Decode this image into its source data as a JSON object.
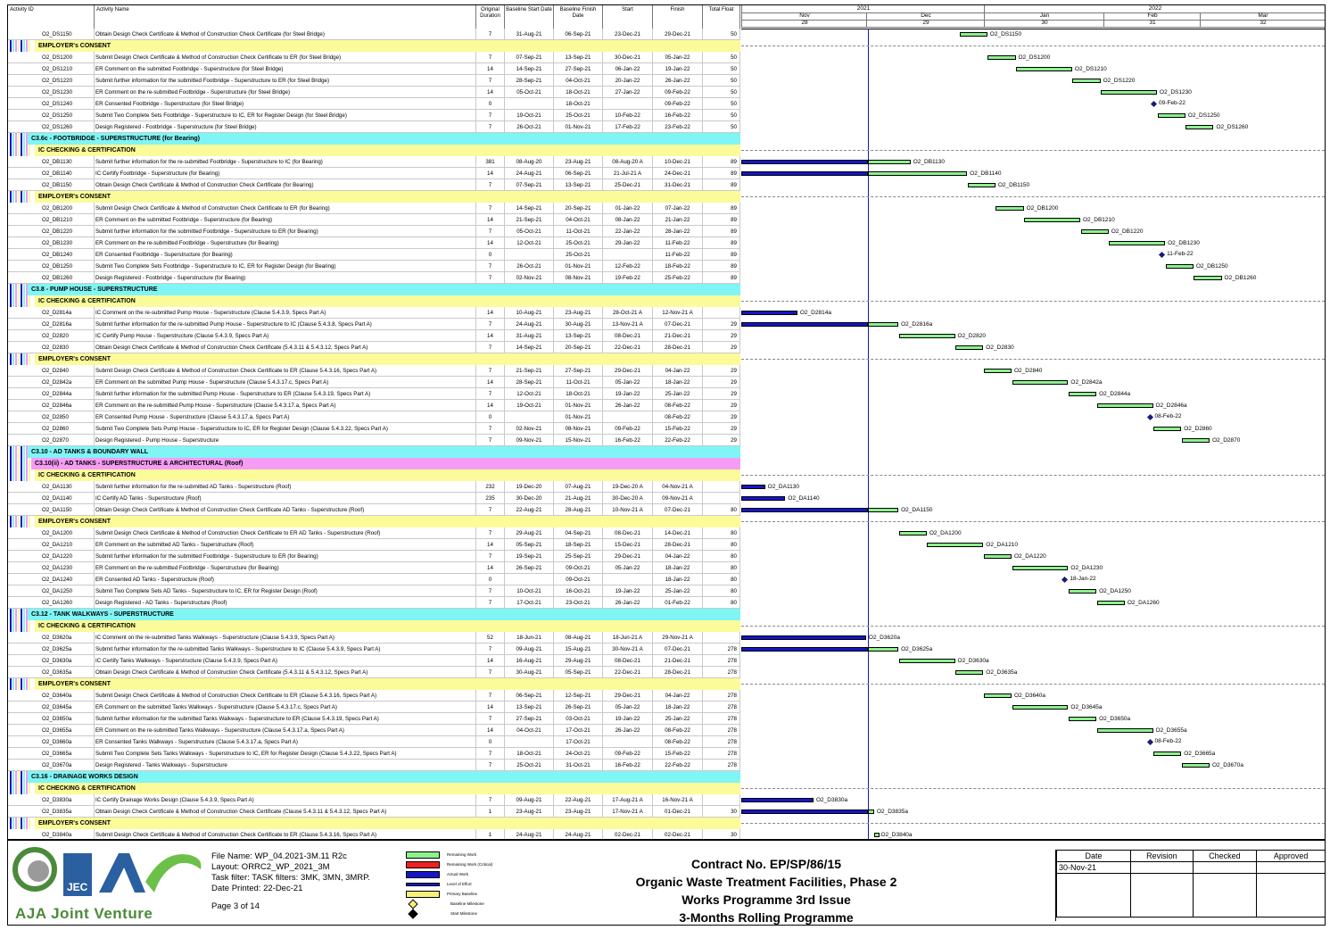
{
  "columns": [
    "Activity ID",
    "Activity Name",
    "Original Duration",
    "Baseline Start Date",
    "Baseline Finish Date",
    "Start",
    "Finish",
    "Total Float"
  ],
  "timeline": {
    "years": [
      "2021",
      "2022"
    ],
    "months": [
      "Nov",
      "Dec",
      "Jan",
      "Feb",
      "Mar"
    ],
    "weeks": [
      "28",
      "29",
      "30",
      "31",
      "32"
    ]
  },
  "rows": [
    {
      "type": "act",
      "id": "O2_DS1150",
      "name": "Obtain Design Check Certificate & Method of Construction Check Certificate (for Steel Bridge)",
      "od": "7",
      "bs": "31-Aug-21",
      "bf": "06-Sep-21",
      "st": "23-Dec-21",
      "fi": "29-Dec-21",
      "tf": "50"
    },
    {
      "type": "sub",
      "name": "EMPLOYER's CONSENT"
    },
    {
      "type": "act",
      "id": "O2_DS1200",
      "name": "Submit Design Check Certificate & Method of Construction Check Certificate to ER (for Steel Bridge)",
      "od": "7",
      "bs": "07-Sep-21",
      "bf": "13-Sep-21",
      "st": "30-Dec-21",
      "fi": "05-Jan-22",
      "tf": "50"
    },
    {
      "type": "act",
      "id": "O2_DS1210",
      "name": "ER Comment on the submitted Footbridge - Superstructure (for Steel Bridge)",
      "od": "14",
      "bs": "14-Sep-21",
      "bf": "27-Sep-21",
      "st": "06-Jan-22",
      "fi": "19-Jan-22",
      "tf": "50"
    },
    {
      "type": "act",
      "id": "O2_DS1220",
      "name": "Submit further information for the submitted Footbridge - Superstructure to ER (for Steel Bridge)",
      "od": "7",
      "bs": "28-Sep-21",
      "bf": "04-Oct-21",
      "st": "20-Jan-22",
      "fi": "26-Jan-22",
      "tf": "50"
    },
    {
      "type": "act",
      "id": "O2_DS1230",
      "name": "ER Comment on the re-submitted Footbridge - Superstructure (for Steel Bridge)",
      "od": "14",
      "bs": "05-Oct-21",
      "bf": "18-Oct-21",
      "st": "27-Jan-22",
      "fi": "09-Feb-22",
      "tf": "50"
    },
    {
      "type": "act",
      "id": "O2_DS1240",
      "name": "ER Consented Footbridge - Superstructure (for Steel Bridge)",
      "od": "0",
      "bs": "",
      "bf": "18-Oct-21",
      "st": "",
      "fi": "09-Feb-22",
      "tf": "50"
    },
    {
      "type": "act",
      "id": "O2_DS1250",
      "name": "Submit Two Complete Sets Footbridge - Superstructure to IC, ER for Register Design (for Steel Bridge)",
      "od": "7",
      "bs": "19-Oct-21",
      "bf": "25-Oct-21",
      "st": "10-Feb-22",
      "fi": "16-Feb-22",
      "tf": "50"
    },
    {
      "type": "act",
      "id": "O2_DS1260",
      "name": "Design Registered - Footbridge - Superstructure (for Steel Bridge)",
      "od": "7",
      "bs": "26-Oct-21",
      "bf": "01-Nov-21",
      "st": "17-Feb-22",
      "fi": "23-Feb-22",
      "tf": "50"
    },
    {
      "type": "sec",
      "name": "C3.6c - FOOTBRIDGE - SUPERSTRUCTURE (for Bearing)"
    },
    {
      "type": "sub",
      "name": "IC CHECKING & CERTIFICATION"
    },
    {
      "type": "act",
      "id": "O2_DB1130",
      "name": "Submit further information for the re-submitted Footbridge - Superstructure to IC (for Bearing)",
      "od": "381",
      "bs": "08-Aug-20",
      "bf": "23-Aug-21",
      "st": "08-Aug-20 A",
      "fi": "10-Dec-21",
      "tf": "89"
    },
    {
      "type": "act",
      "id": "O2_DB1140",
      "name": "IC Certify Footbridge - Superstructure (for Bearing)",
      "od": "14",
      "bs": "24-Aug-21",
      "bf": "06-Sep-21",
      "st": "21-Jul-21 A",
      "fi": "24-Dec-21",
      "tf": "89"
    },
    {
      "type": "act",
      "id": "O2_DB1150",
      "name": "Obtain Design Check Certificate & Method of Construction Check Certificate (for Bearing)",
      "od": "7",
      "bs": "07-Sep-21",
      "bf": "13-Sep-21",
      "st": "25-Dec-21",
      "fi": "31-Dec-21",
      "tf": "89"
    },
    {
      "type": "sub",
      "name": "EMPLOYER's CONSENT"
    },
    {
      "type": "act",
      "id": "O2_DB1200",
      "name": "Submit Design Check Certificate & Method of Construction Check Certificate to ER (for Bearing)",
      "od": "7",
      "bs": "14-Sep-21",
      "bf": "20-Sep-21",
      "st": "01-Jan-22",
      "fi": "07-Jan-22",
      "tf": "89"
    },
    {
      "type": "act",
      "id": "O2_DB1210",
      "name": "ER Comment on the submitted Footbridge - Superstructure (for Bearing)",
      "od": "14",
      "bs": "21-Sep-21",
      "bf": "04-Oct-21",
      "st": "08-Jan-22",
      "fi": "21-Jan-22",
      "tf": "89"
    },
    {
      "type": "act",
      "id": "O2_DB1220",
      "name": "Submit further information for the submitted Footbridge - Superstructure to ER (for Bearing)",
      "od": "7",
      "bs": "05-Oct-21",
      "bf": "11-Oct-21",
      "st": "22-Jan-22",
      "fi": "28-Jan-22",
      "tf": "89"
    },
    {
      "type": "act",
      "id": "O2_DB1230",
      "name": "ER Comment on the re-submitted Footbridge - Superstructure (for Bearing)",
      "od": "14",
      "bs": "12-Oct-21",
      "bf": "25-Oct-21",
      "st": "29-Jan-22",
      "fi": "11-Feb-22",
      "tf": "89"
    },
    {
      "type": "act",
      "id": "O2_DB1240",
      "name": "ER Consented Footbridge - Superstructure (for Bearing)",
      "od": "0",
      "bs": "",
      "bf": "25-Oct-21",
      "st": "",
      "fi": "11-Feb-22",
      "tf": "89"
    },
    {
      "type": "act",
      "id": "O2_DB1250",
      "name": "Submit Two Complete Sets Footbridge - Superstructure to IC, ER for Register Design (for Bearing)",
      "od": "7",
      "bs": "26-Oct-21",
      "bf": "01-Nov-21",
      "st": "12-Feb-22",
      "fi": "18-Feb-22",
      "tf": "89"
    },
    {
      "type": "act",
      "id": "O2_DB1260",
      "name": "Design Registered - Footbridge - Superstructure (for Bearing)",
      "od": "7",
      "bs": "02-Nov-21",
      "bf": "08-Nov-21",
      "st": "19-Feb-22",
      "fi": "25-Feb-22",
      "tf": "89"
    },
    {
      "type": "sec",
      "name": "C3.8 - PUMP HOUSE - SUPERSTRUCTURE"
    },
    {
      "type": "sub",
      "name": "IC CHECKING & CERTIFICATION"
    },
    {
      "type": "act",
      "id": "O2_D2814a",
      "name": "IC Comment on the re-submitted Pump House - Superstructure (Clause 5.4.3.9, Specs Part A)",
      "od": "14",
      "bs": "10-Aug-21",
      "bf": "23-Aug-21",
      "st": "28-Oct-21 A",
      "fi": "12-Nov-21 A",
      "tf": ""
    },
    {
      "type": "act",
      "id": "O2_D2816a",
      "name": "Submit further information for the re-submitted Pump House - Superstructure to IC (Clause 5.4.3.8, Specs Part A)",
      "od": "7",
      "bs": "24-Aug-21",
      "bf": "30-Aug-21",
      "st": "13-Nov-21 A",
      "fi": "07-Dec-21",
      "tf": "29"
    },
    {
      "type": "act",
      "id": "O2_D2820",
      "name": "IC Certify Pump House - Superstructure (Clause 5.4.3.9, Specs Part A)",
      "od": "14",
      "bs": "31-Aug-21",
      "bf": "13-Sep-21",
      "st": "08-Dec-21",
      "fi": "21-Dec-21",
      "tf": "29"
    },
    {
      "type": "act",
      "id": "O2_D2830",
      "name": "Obtain Design Check Certificate & Method of Construction Check Certificate (5.4.3.11 & 5.4.3.12, Specs Part A)",
      "od": "7",
      "bs": "14-Sep-21",
      "bf": "20-Sep-21",
      "st": "22-Dec-21",
      "fi": "28-Dec-21",
      "tf": "29"
    },
    {
      "type": "sub",
      "name": "EMPLOYER's CONSENT"
    },
    {
      "type": "act",
      "id": "O2_D2840",
      "name": "Submit Design Check Certificate & Method of Construction Check Certificate to ER (Clause 5.4.3.16, Specs Part A)",
      "od": "7",
      "bs": "21-Sep-21",
      "bf": "27-Sep-21",
      "st": "29-Dec-21",
      "fi": "04-Jan-22",
      "tf": "29"
    },
    {
      "type": "act",
      "id": "O2_D2842a",
      "name": "ER Comment on the submitted Pump House - Superstructure (Clause 5.4.3.17.c, Specs Part A)",
      "od": "14",
      "bs": "28-Sep-21",
      "bf": "11-Oct-21",
      "st": "05-Jan-22",
      "fi": "18-Jan-22",
      "tf": "29"
    },
    {
      "type": "act",
      "id": "O2_D2844a",
      "name": "Submit further information for the submitted Pump House - Superstructure to ER (Clause 5.4.3.19, Specs Part A)",
      "od": "7",
      "bs": "12-Oct-21",
      "bf": "18-Oct-21",
      "st": "19-Jan-22",
      "fi": "25-Jan-22",
      "tf": "29"
    },
    {
      "type": "act",
      "id": "O2_D2846a",
      "name": "ER Comment on the re-submitted Pump House - Superstructure (Clause 5.4.3.17.a, Specs Part A)",
      "od": "14",
      "bs": "19-Oct-21",
      "bf": "01-Nov-21",
      "st": "26-Jan-22",
      "fi": "08-Feb-22",
      "tf": "29"
    },
    {
      "type": "act",
      "id": "O2_D2850",
      "name": "ER Consented Pump House - Superstructure (Clause 5.4.3.17.a, Specs Part A)",
      "od": "0",
      "bs": "",
      "bf": "01-Nov-21",
      "st": "",
      "fi": "08-Feb-22",
      "tf": "29"
    },
    {
      "type": "act",
      "id": "O2_D2860",
      "name": "Submit Two Complete Sets Pump House - Superstructure to IC, ER for Register Design (Clause 5.4.3.22, Specs Part A)",
      "od": "7",
      "bs": "02-Nov-21",
      "bf": "08-Nov-21",
      "st": "09-Feb-22",
      "fi": "15-Feb-22",
      "tf": "29"
    },
    {
      "type": "act",
      "id": "O2_D2870",
      "name": "Design Registered - Pump House - Superstructure",
      "od": "7",
      "bs": "09-Nov-21",
      "bf": "15-Nov-21",
      "st": "16-Feb-22",
      "fi": "22-Feb-22",
      "tf": "29"
    },
    {
      "type": "sec",
      "name": "C3.10 - AD TANKS & BOUNDARY WALL"
    },
    {
      "type": "sec2",
      "name": "C3.10(ii) - AD TANKS - SUPERSTRUCTURE & ARCHITECTURAL (Roof)"
    },
    {
      "type": "sub",
      "name": "IC CHECKING & CERTIFICATION"
    },
    {
      "type": "act",
      "id": "O2_DA1130",
      "name": "Submit further information for the re-submitted AD Tanks - Superstructure (Roof)",
      "od": "232",
      "bs": "19-Dec-20",
      "bf": "07-Aug-21",
      "st": "19-Dec-20 A",
      "fi": "04-Nov-21 A",
      "tf": ""
    },
    {
      "type": "act",
      "id": "O2_DA1140",
      "name": "IC Certify AD Tanks - Superstructure (Roof)",
      "od": "235",
      "bs": "30-Dec-20",
      "bf": "21-Aug-21",
      "st": "30-Dec-20 A",
      "fi": "09-Nov-21 A",
      "tf": ""
    },
    {
      "type": "act",
      "id": "O2_DA1150",
      "name": "Obtain Design Check Certificate & Method of Construction Check Certificate AD Tanks - Superstructure (Roof)",
      "od": "7",
      "bs": "22-Aug-21",
      "bf": "28-Aug-21",
      "st": "10-Nov-21 A",
      "fi": "07-Dec-21",
      "tf": "80"
    },
    {
      "type": "sub",
      "name": "EMPLOYER's CONSENT"
    },
    {
      "type": "act",
      "id": "O2_DA1200",
      "name": "Submit Design Check Certificate & Method of Construction Check Certificate to ER AD Tanks - Superstructure (Roof)",
      "od": "7",
      "bs": "29-Aug-21",
      "bf": "04-Sep-21",
      "st": "08-Dec-21",
      "fi": "14-Dec-21",
      "tf": "80"
    },
    {
      "type": "act",
      "id": "O2_DA1210",
      "name": "ER Comment on the submitted AD Tanks - Superstructure (Roof)",
      "od": "14",
      "bs": "05-Sep-21",
      "bf": "18-Sep-21",
      "st": "15-Dec-21",
      "fi": "28-Dec-21",
      "tf": "80"
    },
    {
      "type": "act",
      "id": "O2_DA1220",
      "name": "Submit further information for the submitted Footbridge - Superstructure to ER (for Bearing)",
      "od": "7",
      "bs": "19-Sep-21",
      "bf": "25-Sep-21",
      "st": "29-Dec-21",
      "fi": "04-Jan-22",
      "tf": "80"
    },
    {
      "type": "act",
      "id": "O2_DA1230",
      "name": "ER Comment on the re-submitted Footbridge - Superstructure (for Bearing)",
      "od": "14",
      "bs": "26-Sep-21",
      "bf": "09-Oct-21",
      "st": "05-Jan-22",
      "fi": "18-Jan-22",
      "tf": "80"
    },
    {
      "type": "act",
      "id": "O2_DA1240",
      "name": "ER Consented AD Tanks - Superstructure (Roof)",
      "od": "0",
      "bs": "",
      "bf": "09-Oct-21",
      "st": "",
      "fi": "18-Jan-22",
      "tf": "80"
    },
    {
      "type": "act",
      "id": "O2_DA1250",
      "name": "Submit Two Complete Sets AD Tanks - Superstructure to IC, ER for Register Design (Roof)",
      "od": "7",
      "bs": "10-Oct-21",
      "bf": "16-Oct-21",
      "st": "19-Jan-22",
      "fi": "25-Jan-22",
      "tf": "80"
    },
    {
      "type": "act",
      "id": "O2_DA1260",
      "name": "Design Registered - AD Tanks - Superstructure (Roof)",
      "od": "7",
      "bs": "17-Oct-21",
      "bf": "23-Oct-21",
      "st": "26-Jan-22",
      "fi": "01-Feb-22",
      "tf": "80"
    },
    {
      "type": "sec",
      "name": "C3.12 - TANK WALKWAYS - SUPERSTRUCTURE"
    },
    {
      "type": "sub",
      "name": "IC CHECKING & CERTIFICATION"
    },
    {
      "type": "act",
      "id": "O2_D3620a",
      "name": "IC Comment on the re-submitted Tanks Walkways - Superstructure (Clause 5.4.3.9, Specs Part A)",
      "od": "52",
      "bs": "18-Jun-21",
      "bf": "08-Aug-21",
      "st": "18-Jun-21 A",
      "fi": "29-Nov-21 A",
      "tf": ""
    },
    {
      "type": "act",
      "id": "O2_D3625a",
      "name": "Submit further information for the re-submitted Tanks Walkways - Superstructure to IC (Clause 5.4.3.9, Specs Part A)",
      "od": "7",
      "bs": "09-Aug-21",
      "bf": "15-Aug-21",
      "st": "30-Nov-21 A",
      "fi": "07-Dec-21",
      "tf": "278"
    },
    {
      "type": "act",
      "id": "O2_D3630a",
      "name": "IC Certify Tanks Walkways - Superstructure (Clause 5.4.3.9, Specs Part A)",
      "od": "14",
      "bs": "16-Aug-21",
      "bf": "29-Aug-21",
      "st": "08-Dec-21",
      "fi": "21-Dec-21",
      "tf": "278"
    },
    {
      "type": "act",
      "id": "O2_D3635a",
      "name": "Obtain Design Check Certificate & Method of Construction Check Certificate (5.4.3.11 & 5.4.3.12, Specs Part A)",
      "od": "7",
      "bs": "30-Aug-21",
      "bf": "05-Sep-21",
      "st": "22-Dec-21",
      "fi": "28-Dec-21",
      "tf": "278"
    },
    {
      "type": "sub",
      "name": "EMPLOYER's CONSENT"
    },
    {
      "type": "act",
      "id": "O2_D3640a",
      "name": "Submit Design Check Certificate & Method of Construction Check Certificate to ER (Clause 5.4.3.16, Specs Part A)",
      "od": "7",
      "bs": "06-Sep-21",
      "bf": "12-Sep-21",
      "st": "29-Dec-21",
      "fi": "04-Jan-22",
      "tf": "278"
    },
    {
      "type": "act",
      "id": "O2_D3645a",
      "name": "ER Comment on the submitted Tanks Walkways - Superstructure (Clause 5.4.3.17.c, Specs Part A)",
      "od": "14",
      "bs": "13-Sep-21",
      "bf": "26-Sep-21",
      "st": "05-Jan-22",
      "fi": "18-Jan-22",
      "tf": "278"
    },
    {
      "type": "act",
      "id": "O2_D3650a",
      "name": "Submit further information for the submitted Tanks Walkways - Superstructure to ER (Clause 5.4.3.19, Specs Part A)",
      "od": "7",
      "bs": "27-Sep-21",
      "bf": "03-Oct-21",
      "st": "19-Jan-22",
      "fi": "25-Jan-22",
      "tf": "278"
    },
    {
      "type": "act",
      "id": "O2_D3655a",
      "name": "ER Comment on the re-submitted Tanks Walkways - Superstructure (Clause 5.4.3.17.a, Specs Part A)",
      "od": "14",
      "bs": "04-Oct-21",
      "bf": "17-Oct-21",
      "st": "26-Jan-22",
      "fi": "08-Feb-22",
      "tf": "278"
    },
    {
      "type": "act",
      "id": "O2_D3660a",
      "name": "ER Consented Tanks Walkways - Superstructure (Clause 5.4.3.17.a, Specs Part A)",
      "od": "0",
      "bs": "",
      "bf": "17-Oct-21",
      "st": "",
      "fi": "08-Feb-22",
      "tf": "278"
    },
    {
      "type": "act",
      "id": "O2_D3665a",
      "name": "Submit Two Complete Sets Tanks Walkways - Superstructure to IC, ER for Register Design (Clause 5.4.3.22, Specs Part A)",
      "od": "7",
      "bs": "18-Oct-21",
      "bf": "24-Oct-21",
      "st": "09-Feb-22",
      "fi": "15-Feb-22",
      "tf": "278"
    },
    {
      "type": "act",
      "id": "O2_D3670a",
      "name": "Design Registered - Tanks Walkways - Superstructure",
      "od": "7",
      "bs": "25-Oct-21",
      "bf": "31-Oct-21",
      "st": "16-Feb-22",
      "fi": "22-Feb-22",
      "tf": "278"
    },
    {
      "type": "sec",
      "name": "C3.16 - DRAINAGE WORKS DESIGN"
    },
    {
      "type": "sub",
      "name": "IC CHECKING & CERTIFICATION"
    },
    {
      "type": "act",
      "id": "O2_D3830a",
      "name": "IC Certify Drainage Works Design (Clause 5.4.3.9, Specs Part A)",
      "od": "7",
      "bs": "09-Aug-21",
      "bf": "22-Aug-21",
      "st": "17-Aug-21 A",
      "fi": "16-Nov-21 A",
      "tf": ""
    },
    {
      "type": "act",
      "id": "O2_D3835a",
      "name": "Obtain Design Check Certificate & Method of Construction Check Certificate (Clause 5.4.3.11 & 5.4.3.12, Specs Part A)",
      "od": "1",
      "bs": "23-Aug-21",
      "bf": "23-Aug-21",
      "st": "17-Nov-21 A",
      "fi": "01-Dec-21",
      "tf": "30"
    },
    {
      "type": "sub",
      "name": "EMPLOYER's CONSENT"
    },
    {
      "type": "act",
      "id": "O2_D3840a",
      "name": "Submit Design Check Certificate & Method of Construction Check Certificate to ER (Clause 5.4.3.16, Specs Part A)",
      "od": "1",
      "bs": "24-Aug-21",
      "bf": "24-Aug-21",
      "st": "02-Dec-21",
      "fi": "02-Dec-21",
      "tf": "30"
    }
  ],
  "footer": {
    "logo_text": "AJA Joint Venture",
    "logo_badge": "JEC",
    "file_name": "File Name: WP_04.2021-3M.11 R2c",
    "layout": "Layout: ORRC2_WP_2021_3M",
    "task_filter": "Task filter: TASK filters: 3MK, 3MN, 3MRP.",
    "date_printed": "Date Printed: 22-Dec-21",
    "page": "Page 3 of 14",
    "legend": [
      "Remaining Work",
      "Remaining Work (Critical)",
      "Actual Work",
      "Level of Effort",
      "Primary Baseline",
      "Baseline Milestone",
      "Start Milestone"
    ],
    "title_lines": [
      "Contract No. EP/SP/86/15",
      "Organic Waste Treatment Facilities, Phase 2",
      "Works Programme 3rd Issue",
      "3-Months Rolling Programme"
    ],
    "sign_headers": [
      "Date",
      "Revision",
      "Checked",
      "Approved"
    ],
    "sign_date": "30-Nov-21"
  }
}
